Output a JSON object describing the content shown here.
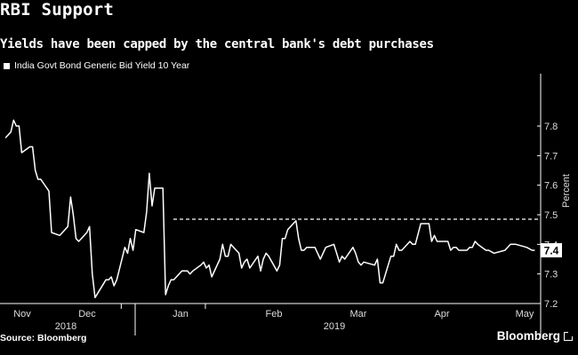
{
  "header": {
    "title": "RBI Support",
    "subtitle": "Yields have been capped by the central bank's debt purchases"
  },
  "footer": {
    "source": "Source: Bloomberg",
    "brand": "Bloomberg"
  },
  "colors": {
    "background": "#000000",
    "line": "#ffffff",
    "grid": "#ffffff",
    "last_value_box": "#ffffff"
  },
  "chart_data": {
    "type": "line",
    "title": "RBI Support",
    "subtitle": "Yields have been capped by the central bank's debt purchases",
    "ylabel": "Percent",
    "xlabel": "",
    "ylim": [
      7.15,
      7.92
    ],
    "yticks": [
      "7.2",
      "7.3",
      "7.4",
      "7.5",
      "7.6",
      "7.7",
      "7.8"
    ],
    "y_axis_position": "right",
    "legend": {
      "position": "top-left",
      "entries": [
        "India Govt Bond Generic Bid Yield 10 Year"
      ]
    },
    "x_month_labels": [
      "Nov",
      "Dec",
      "Jan",
      "Feb",
      "Mar",
      "Apr",
      "May"
    ],
    "x_year_labels": [
      "2018",
      "2019"
    ],
    "reference_line": {
      "value": 7.485,
      "style": "dashed",
      "from": "2019-01-01"
    },
    "last_value_label": "7.4",
    "series": [
      {
        "name": "India Govt Bond Generic Bid Yield 10 Year",
        "x": [
          "2018-10-20",
          "2018-10-22",
          "2018-10-23",
          "2018-10-24",
          "2018-10-25",
          "2018-10-26",
          "2018-10-29",
          "2018-10-30",
          "2018-10-31",
          "2018-11-01",
          "2018-11-02",
          "2018-11-05",
          "2018-11-06",
          "2018-11-09",
          "2018-11-12",
          "2018-11-13",
          "2018-11-14",
          "2018-11-15",
          "2018-11-16",
          "2018-11-19",
          "2018-11-20",
          "2018-11-21",
          "2018-11-22",
          "2018-11-26",
          "2018-11-27",
          "2018-11-28",
          "2018-11-29",
          "2018-11-30",
          "2018-12-03",
          "2018-12-04",
          "2018-12-05",
          "2018-12-06",
          "2018-12-07",
          "2018-12-10",
          "2018-12-11",
          "2018-12-12",
          "2018-12-13",
          "2018-12-14",
          "2018-12-17",
          "2018-12-18",
          "2018-12-19",
          "2018-12-20",
          "2018-12-21",
          "2018-12-24",
          "2018-12-26",
          "2018-12-27",
          "2018-12-28",
          "2018-12-31",
          "2019-01-01",
          "2019-01-02",
          "2019-01-03",
          "2019-01-04",
          "2019-01-07",
          "2019-01-08",
          "2019-01-09",
          "2019-01-10",
          "2019-01-11",
          "2019-01-14",
          "2019-01-15",
          "2019-01-16",
          "2019-01-17",
          "2019-01-18",
          "2019-01-21",
          "2019-01-22",
          "2019-01-23",
          "2019-01-24",
          "2019-01-25",
          "2019-01-28",
          "2019-01-29",
          "2019-01-30",
          "2019-01-31",
          "2019-02-01",
          "2019-02-04",
          "2019-02-05",
          "2019-02-06",
          "2019-02-07",
          "2019-02-08",
          "2019-02-11",
          "2019-02-12",
          "2019-02-13",
          "2019-02-14",
          "2019-02-15",
          "2019-02-18",
          "2019-02-19",
          "2019-02-20",
          "2019-02-21",
          "2019-02-22",
          "2019-02-25",
          "2019-02-26",
          "2019-02-27",
          "2019-02-28",
          "2019-03-01",
          "2019-03-05",
          "2019-03-06",
          "2019-03-07",
          "2019-03-08",
          "2019-03-11",
          "2019-03-12",
          "2019-03-13",
          "2019-03-14",
          "2019-03-15",
          "2019-03-18",
          "2019-03-19",
          "2019-03-20",
          "2019-03-22",
          "2019-03-25",
          "2019-03-26",
          "2019-03-27",
          "2019-03-28",
          "2019-03-29",
          "2019-04-01",
          "2019-04-02",
          "2019-04-03",
          "2019-04-04",
          "2019-04-05",
          "2019-04-08",
          "2019-04-09",
          "2019-04-10",
          "2019-04-11",
          "2019-04-12",
          "2019-04-15",
          "2019-04-16",
          "2019-04-18",
          "2019-04-22",
          "2019-04-23",
          "2019-04-24",
          "2019-04-25",
          "2019-04-26",
          "2019-04-30",
          "2019-05-02",
          "2019-05-03"
        ],
        "values": [
          7.76,
          7.78,
          7.82,
          7.8,
          7.8,
          7.71,
          7.73,
          7.73,
          7.65,
          7.62,
          7.62,
          7.58,
          7.44,
          7.43,
          7.46,
          7.56,
          7.5,
          7.42,
          7.41,
          7.44,
          7.46,
          7.3,
          7.22,
          7.28,
          7.28,
          7.29,
          7.26,
          7.28,
          7.39,
          7.37,
          7.42,
          7.38,
          7.45,
          7.44,
          7.51,
          7.64,
          7.53,
          7.59,
          7.59,
          7.23,
          7.26,
          7.28,
          7.28,
          7.31,
          7.31,
          7.3,
          7.31,
          7.33,
          7.34,
          7.32,
          7.33,
          7.29,
          7.35,
          7.4,
          7.36,
          7.36,
          7.4,
          7.37,
          7.32,
          7.34,
          7.35,
          7.32,
          7.36,
          7.31,
          7.35,
          7.37,
          7.36,
          7.31,
          7.33,
          7.42,
          7.42,
          7.45,
          7.48,
          7.42,
          7.38,
          7.38,
          7.39,
          7.39,
          7.37,
          7.35,
          7.37,
          7.39,
          7.4,
          7.37,
          7.34,
          7.36,
          7.35,
          7.39,
          7.37,
          7.34,
          7.33,
          7.34,
          7.33,
          7.35,
          7.27,
          7.27,
          7.36,
          7.36,
          7.4,
          7.38,
          7.38,
          7.41,
          7.4,
          7.4,
          7.47,
          7.47,
          7.41,
          7.43,
          7.41,
          7.41,
          7.41,
          7.38,
          7.39,
          7.39,
          7.38,
          7.38,
          7.39,
          7.39,
          7.41,
          7.4,
          7.38,
          7.38,
          7.37,
          7.38,
          7.39,
          7.4,
          7.4,
          7.4,
          7.39,
          7.38,
          7.38
        ]
      }
    ]
  }
}
